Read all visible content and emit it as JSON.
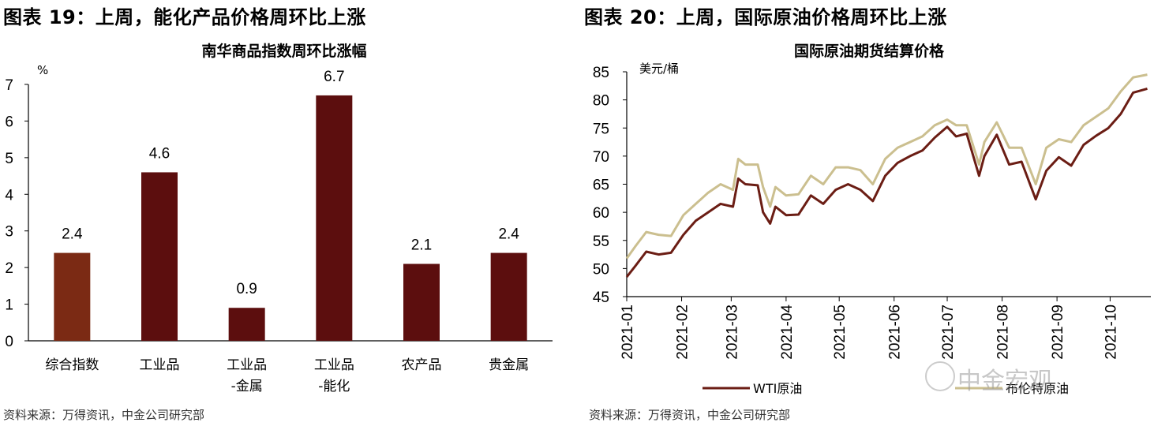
{
  "left_panel": {
    "figure_title": "图表 19：上周，能化产品价格周环比上涨",
    "source": "资料来源：万得资讯，中金公司研究部"
  },
  "right_panel": {
    "figure_title": "图表 20：上周，国际原油价格周环比上涨",
    "source": "资料来源：万得资讯，中金公司研究部"
  },
  "watermark": {
    "text": "中金宏观"
  },
  "colors": {
    "bar_first": "#7b2a14",
    "bar": "#5c0e0e",
    "wti": "#6b1d14",
    "brent": "#cbbf8f",
    "axis": "#000000"
  },
  "chart_data": [
    {
      "type": "bar",
      "title": "南华商品指数周环比涨幅",
      "ylabel": "%",
      "categories": [
        "综合指数",
        "工业品",
        "工业品\n-金属",
        "工业品\n-能化",
        "农产品",
        "贵金属"
      ],
      "values": [
        2.4,
        4.6,
        0.9,
        6.7,
        2.1,
        2.4
      ],
      "ylim": [
        0,
        7
      ],
      "yticks": [
        0,
        1,
        2,
        3,
        4,
        5,
        6,
        7
      ],
      "data_labels": true,
      "grid": false
    },
    {
      "type": "line",
      "title": "国际原油期货结算价格",
      "ylabel": "美元/桶",
      "ylim": [
        45,
        85
      ],
      "yticks": [
        45,
        50,
        55,
        60,
        65,
        70,
        75,
        80,
        85
      ],
      "xticks": [
        "2021-01",
        "2021-02",
        "2021-03",
        "2021-04",
        "2021-05",
        "2021-06",
        "2021-07",
        "2021-08",
        "2021-09",
        "2021-10"
      ],
      "x": [
        "2021-01-01",
        "2021-01-06",
        "2021-01-12",
        "2021-01-19",
        "2021-01-26",
        "2021-02-02",
        "2021-02-09",
        "2021-02-16",
        "2021-02-23",
        "2021-03-02",
        "2021-03-05",
        "2021-03-09",
        "2021-03-16",
        "2021-03-19",
        "2021-03-23",
        "2021-03-26",
        "2021-04-01",
        "2021-04-08",
        "2021-04-15",
        "2021-04-22",
        "2021-04-29",
        "2021-05-06",
        "2021-05-13",
        "2021-05-20",
        "2021-05-27",
        "2021-06-03",
        "2021-06-10",
        "2021-06-17",
        "2021-06-24",
        "2021-07-01",
        "2021-07-06",
        "2021-07-12",
        "2021-07-19",
        "2021-07-22",
        "2021-07-29",
        "2021-08-05",
        "2021-08-12",
        "2021-08-20",
        "2021-08-26",
        "2021-09-02",
        "2021-09-09",
        "2021-09-16",
        "2021-09-23",
        "2021-09-30",
        "2021-10-07",
        "2021-10-14",
        "2021-10-22"
      ],
      "series": [
        {
          "name": "WTI原油",
          "values": [
            48.5,
            50.5,
            53.0,
            52.5,
            52.8,
            56.0,
            58.5,
            60.0,
            61.5,
            61.0,
            66.0,
            65.0,
            64.8,
            60.0,
            58.0,
            61.0,
            59.5,
            59.6,
            63.0,
            61.5,
            64.0,
            65.0,
            64.0,
            62.0,
            66.5,
            68.8,
            70.0,
            71.0,
            73.3,
            75.2,
            73.5,
            74.0,
            66.5,
            70.0,
            73.8,
            68.5,
            69.0,
            62.3,
            67.4,
            69.8,
            68.3,
            72.0,
            73.6,
            75.0,
            77.5,
            81.3,
            82.0
          ]
        },
        {
          "name": "布伦特原油",
          "values": [
            51.8,
            54.0,
            56.5,
            56.0,
            55.8,
            59.5,
            61.5,
            63.5,
            65.0,
            64.0,
            69.5,
            68.5,
            68.5,
            64.5,
            61.0,
            64.5,
            63.0,
            63.2,
            66.5,
            65.0,
            68.0,
            68.0,
            67.5,
            65.0,
            69.5,
            71.5,
            72.5,
            73.5,
            75.5,
            76.5,
            75.5,
            75.5,
            68.5,
            72.5,
            76.0,
            71.5,
            71.5,
            65.0,
            71.5,
            73.0,
            72.5,
            75.5,
            77.0,
            78.5,
            81.5,
            84.0,
            84.5
          ]
        }
      ],
      "legend": "bottom"
    }
  ]
}
